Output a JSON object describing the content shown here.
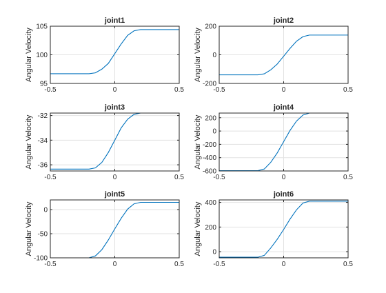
{
  "figure": {
    "background": "#ffffff",
    "axes_color": "#262626",
    "grid_color": "#e2e2e2",
    "line_color": "#0072bd"
  },
  "chart_data": [
    {
      "type": "line",
      "title": "joint1",
      "ylabel": "Angular Velocity",
      "xlim": [
        -0.5,
        0.5
      ],
      "ylim": [
        95,
        105
      ],
      "xticks": [
        -0.5,
        0,
        0.5
      ],
      "xtick_labels": [
        "-0.5",
        "0",
        "0.5"
      ],
      "yticks": [
        95,
        100,
        105
      ],
      "ytick_labels": [
        "95",
        "100",
        "105"
      ],
      "grid": true,
      "series": [
        {
          "x": [
            -0.5,
            -0.2,
            -0.15,
            -0.1,
            -0.05,
            0,
            0.05,
            0.1,
            0.15,
            0.2,
            0.5
          ],
          "y": [
            96.7,
            96.7,
            96.85,
            97.5,
            98.5,
            100.2,
            101.9,
            103.4,
            104.2,
            104.4,
            104.4
          ]
        }
      ]
    },
    {
      "type": "line",
      "title": "joint2",
      "ylabel": "Angular Velocity",
      "xlim": [
        -0.5,
        0.5
      ],
      "ylim": [
        -200,
        200
      ],
      "xticks": [
        -0.5,
        0,
        0.5
      ],
      "xtick_labels": [
        "-0.5",
        "0",
        "0.5"
      ],
      "yticks": [
        -200,
        0,
        200
      ],
      "ytick_labels": [
        "-200",
        "0",
        "200"
      ],
      "grid": true,
      "series": [
        {
          "x": [
            -0.5,
            -0.2,
            -0.15,
            -0.1,
            -0.05,
            0,
            0.05,
            0.1,
            0.15,
            0.2,
            0.5
          ],
          "y": [
            -140,
            -140,
            -133,
            -105,
            -65,
            -10,
            45,
            95,
            127,
            138,
            138
          ]
        }
      ]
    },
    {
      "type": "line",
      "title": "joint3",
      "ylabel": "Angular Velocity",
      "xlim": [
        -0.5,
        0.5
      ],
      "ylim": [
        -36.5,
        -31.8
      ],
      "xticks": [
        -0.5,
        0,
        0.5
      ],
      "xtick_labels": [
        "-0.5",
        "0",
        "0.5"
      ],
      "yticks": [
        -36,
        -34,
        -32
      ],
      "ytick_labels": [
        "-36",
        "-34",
        "-32"
      ],
      "grid": true,
      "series": [
        {
          "x": [
            -0.5,
            -0.2,
            -0.15,
            -0.1,
            -0.05,
            0,
            0.05,
            0.1,
            0.15,
            0.2,
            0.5
          ],
          "y": [
            -36.35,
            -36.35,
            -36.25,
            -35.8,
            -35.0,
            -34.0,
            -33.0,
            -32.3,
            -31.9,
            -31.8,
            -31.8
          ]
        }
      ]
    },
    {
      "type": "line",
      "title": "joint4",
      "ylabel": "Angular Velocity",
      "xlim": [
        -0.5,
        0.5
      ],
      "ylim": [
        -600,
        270
      ],
      "xticks": [
        -0.5,
        0,
        0.5
      ],
      "xtick_labels": [
        "-0.5",
        "0",
        "0.5"
      ],
      "yticks": [
        -600,
        -400,
        -200,
        0,
        200
      ],
      "ytick_labels": [
        "-600",
        "-400",
        "-200",
        "0",
        "200"
      ],
      "grid": true,
      "series": [
        {
          "x": [
            -0.5,
            -0.2,
            -0.15,
            -0.1,
            -0.05,
            0,
            0.05,
            0.1,
            0.15,
            0.2,
            0.5
          ],
          "y": [
            -595,
            -595,
            -570,
            -470,
            -330,
            -160,
            10,
            150,
            240,
            270,
            270
          ]
        }
      ]
    },
    {
      "type": "line",
      "title": "joint5",
      "ylabel": "Angular Velocity",
      "xlim": [
        -0.5,
        0.5
      ],
      "ylim": [
        -100,
        20
      ],
      "xticks": [
        -0.5,
        0,
        0.5
      ],
      "xtick_labels": [
        "-0.5",
        "0",
        "0.5"
      ],
      "yticks": [
        -100,
        -50,
        0
      ],
      "ytick_labels": [
        "-100",
        "-50",
        "0"
      ],
      "grid": true,
      "series": [
        {
          "x": [
            -0.5,
            -0.2,
            -0.15,
            -0.1,
            -0.05,
            0,
            0.05,
            0.1,
            0.15,
            0.2,
            0.5
          ],
          "y": [
            -100,
            -100,
            -96,
            -83,
            -63,
            -40,
            -18,
            1,
            12,
            15,
            15
          ]
        }
      ]
    },
    {
      "type": "line",
      "title": "joint6",
      "ylabel": "Angular Velocity",
      "xlim": [
        -0.5,
        0.5
      ],
      "ylim": [
        -50,
        420
      ],
      "xticks": [
        -0.5,
        0,
        0.5
      ],
      "xtick_labels": [
        "-0.5",
        "0",
        "0.5"
      ],
      "yticks": [
        0,
        200,
        400
      ],
      "ytick_labels": [
        "0",
        "200",
        "400"
      ],
      "grid": true,
      "series": [
        {
          "x": [
            -0.5,
            -0.2,
            -0.15,
            -0.1,
            -0.05,
            0,
            0.05,
            0.1,
            0.15,
            0.2,
            0.5
          ],
          "y": [
            -45,
            -45,
            -30,
            30,
            100,
            180,
            265,
            340,
            395,
            410,
            410
          ]
        }
      ]
    }
  ]
}
